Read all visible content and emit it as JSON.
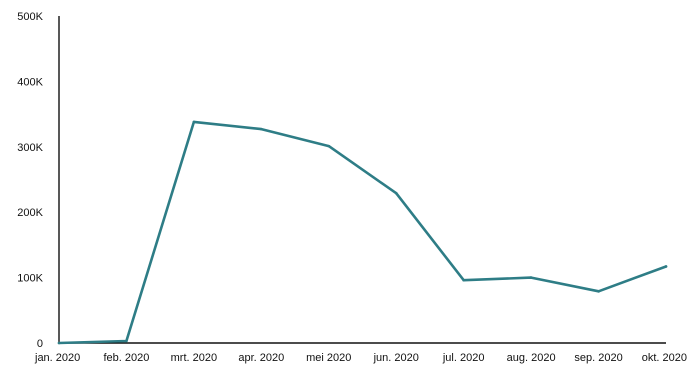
{
  "chart_data": {
    "type": "line",
    "title": "",
    "xlabel": "",
    "ylabel": "",
    "categories": [
      "jan. 2020",
      "feb. 2020",
      "mrt. 2020",
      "apr. 2020",
      "mei 2020",
      "jun. 2020",
      "jul. 2020",
      "aug. 2020",
      "sep. 2020",
      "okt. 2020"
    ],
    "series": [
      {
        "values": [
          0,
          3000,
          338000,
          327000,
          301000,
          229000,
          96000,
          100000,
          79000,
          117000
        ]
      }
    ],
    "ylim": [
      0,
      500000
    ],
    "yticks": [
      0,
      100000,
      200000,
      300000,
      400000,
      500000
    ],
    "ytick_labels": [
      "0",
      "100K",
      "200K",
      "300K",
      "400K",
      "500K"
    ],
    "grid": false,
    "legend": "none",
    "colors": {
      "series": "#2e7d86",
      "axis": "#111111"
    }
  }
}
